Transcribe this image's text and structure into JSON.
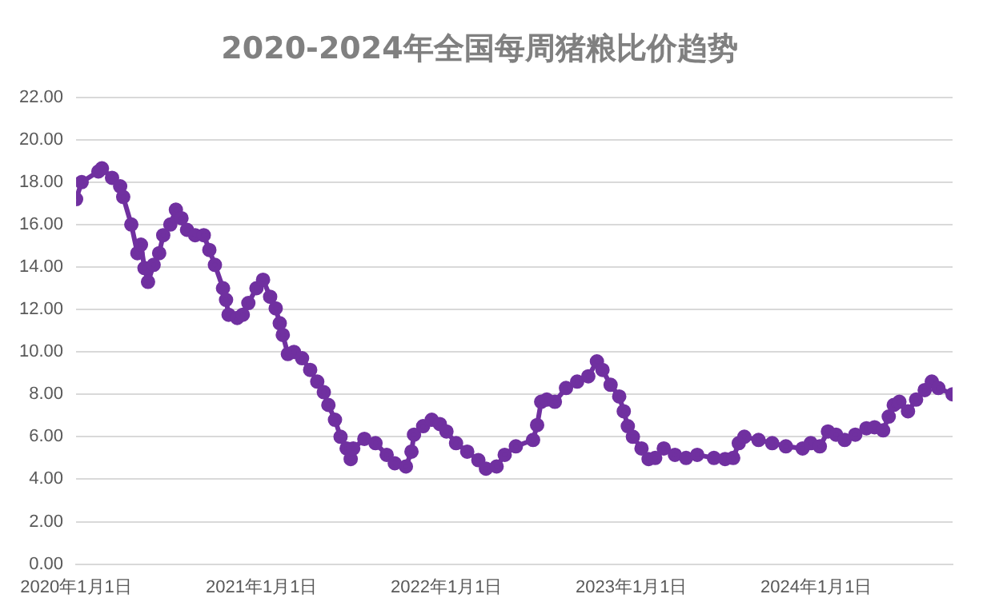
{
  "chart_data": {
    "type": "line",
    "title": "2020-2024年全国每周猪粮比价趋势",
    "x": [
      "2020-01-01",
      "2020-01-12",
      "2020-02-14",
      "2020-02-21",
      "2020-03-12",
      "2020-03-28",
      "2020-04-03",
      "2020-04-19",
      "2020-05-01",
      "2020-05-08",
      "2020-05-15",
      "2020-05-22",
      "2020-06-02",
      "2020-06-13",
      "2020-06-21",
      "2020-07-05",
      "2020-07-16",
      "2020-07-27",
      "2020-08-07",
      "2020-08-23",
      "2020-09-09",
      "2020-09-20",
      "2020-10-01",
      "2020-10-17",
      "2020-10-23",
      "2020-10-28",
      "2020-11-14",
      "2020-11-25",
      "2020-12-06",
      "2020-12-22",
      "2021-01-04",
      "2021-01-18",
      "2021-01-29",
      "2021-02-06",
      "2021-02-12",
      "2021-02-22",
      "2021-03-06",
      "2021-03-22",
      "2021-04-07",
      "2021-04-21",
      "2021-05-04",
      "2021-05-13",
      "2021-05-26",
      "2021-06-06",
      "2021-06-18",
      "2021-06-26",
      "2021-07-01",
      "2021-07-23",
      "2021-08-14",
      "2021-09-05",
      "2021-09-21",
      "2021-10-13",
      "2021-10-24",
      "2021-10-29",
      "2021-11-16",
      "2021-12-03",
      "2021-12-19",
      "2022-01-01",
      "2022-01-20",
      "2022-02-11",
      "2022-03-05",
      "2022-03-20",
      "2022-04-10",
      "2022-04-26",
      "2022-05-18",
      "2022-06-21",
      "2022-06-29",
      "2022-07-07",
      "2022-07-18",
      "2022-08-03",
      "2022-08-25",
      "2022-09-16",
      "2022-10-08",
      "2022-10-25",
      "2022-11-05",
      "2022-11-21",
      "2022-12-08",
      "2022-12-17",
      "2022-12-25",
      "2023-01-04",
      "2023-01-21",
      "2023-02-04",
      "2023-02-17",
      "2023-03-06",
      "2023-03-28",
      "2023-04-19",
      "2023-05-11",
      "2023-06-13",
      "2023-07-05",
      "2023-07-21",
      "2023-08-01",
      "2023-08-12",
      "2023-09-09",
      "2023-10-06",
      "2023-11-02",
      "2023-12-05",
      "2023-12-21",
      "2024-01-08",
      "2024-01-24",
      "2024-02-09",
      "2024-02-26",
      "2024-03-18",
      "2024-04-09",
      "2024-04-25",
      "2024-05-12",
      "2024-05-23",
      "2024-06-02",
      "2024-06-13",
      "2024-06-30",
      "2024-07-16",
      "2024-08-02",
      "2024-08-16",
      "2024-08-29",
      "2024-09-26"
    ],
    "series": [
      {
        "color": "#7030a0",
        "values": [
          17.2,
          18.0,
          18.5,
          18.65,
          18.2,
          17.8,
          17.3,
          16.0,
          14.65,
          15.05,
          13.95,
          13.3,
          14.1,
          14.65,
          15.5,
          16.0,
          16.7,
          16.3,
          15.75,
          15.5,
          15.5,
          14.8,
          14.1,
          13.0,
          12.45,
          11.75,
          11.6,
          11.75,
          12.3,
          13.0,
          13.4,
          12.6,
          12.05,
          11.35,
          10.8,
          9.9,
          10.0,
          9.7,
          9.15,
          8.6,
          8.1,
          7.5,
          6.8,
          6.0,
          5.45,
          4.95,
          5.45,
          5.9,
          5.7,
          5.15,
          4.75,
          4.6,
          5.3,
          6.1,
          6.5,
          6.8,
          6.6,
          6.25,
          5.7,
          5.3,
          4.9,
          4.5,
          4.6,
          5.15,
          5.55,
          5.85,
          6.55,
          7.65,
          7.75,
          7.65,
          8.3,
          8.6,
          8.85,
          9.55,
          9.15,
          8.45,
          7.9,
          7.2,
          6.5,
          6.0,
          5.45,
          4.95,
          5.0,
          5.45,
          5.15,
          5.0,
          5.15,
          5.0,
          4.95,
          5.0,
          5.7,
          6.0,
          5.85,
          5.7,
          5.55,
          5.45,
          5.7,
          5.55,
          6.25,
          6.1,
          5.85,
          6.1,
          6.4,
          6.45,
          6.3,
          6.95,
          7.5,
          7.65,
          7.2,
          7.75,
          8.2,
          8.6,
          8.3,
          8.0
        ]
      }
    ],
    "xlim": [
      "2020-01-01",
      "2024-09-26"
    ],
    "xticks": [
      {
        "value": "2020-01-01",
        "label": "2020年1月1日"
      },
      {
        "value": "2021-01-01",
        "label": "2021年1月1日"
      },
      {
        "value": "2022-01-01",
        "label": "2022年1月1日"
      },
      {
        "value": "2023-01-01",
        "label": "2023年1月1日"
      },
      {
        "value": "2024-01-01",
        "label": "2024年1月1日"
      }
    ],
    "ylim": [
      0,
      22
    ],
    "yticks": [
      {
        "value": 0,
        "label": "0.00"
      },
      {
        "value": 2,
        "label": "2.00"
      },
      {
        "value": 4,
        "label": "4.00"
      },
      {
        "value": 6,
        "label": "6.00"
      },
      {
        "value": 8,
        "label": "8.00"
      },
      {
        "value": 10,
        "label": "10.00"
      },
      {
        "value": 12,
        "label": "12.00"
      },
      {
        "value": 14,
        "label": "14.00"
      },
      {
        "value": 16,
        "label": "16.00"
      },
      {
        "value": 18,
        "label": "18.00"
      },
      {
        "value": 20,
        "label": "20.00"
      },
      {
        "value": 22,
        "label": "22.00"
      }
    ],
    "grid": "y",
    "marker": "circle",
    "line_style": "solid",
    "legend": false
  }
}
